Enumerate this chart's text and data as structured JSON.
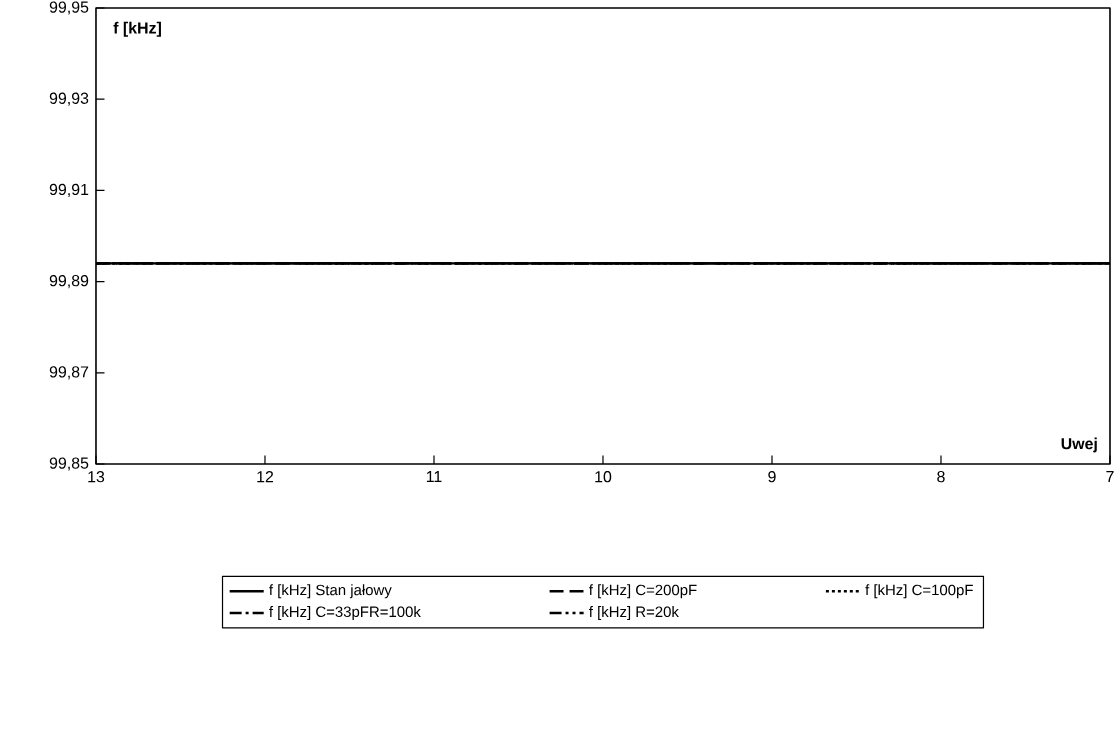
{
  "chart_data": {
    "type": "line",
    "xlabel": "Uwej",
    "ylabel": "f [kHz]",
    "xlim": [
      13,
      7
    ],
    "xticks": [
      13,
      12,
      11,
      10,
      9,
      8,
      7
    ],
    "ylim": [
      99.85,
      99.95
    ],
    "yticks": [
      {
        "value": 99.85,
        "label": "99,85"
      },
      {
        "value": 99.87,
        "label": "99,87"
      },
      {
        "value": 99.89,
        "label": "99,89"
      },
      {
        "value": 99.91,
        "label": "99,91"
      },
      {
        "value": 99.93,
        "label": "99,93"
      },
      {
        "value": 99.95,
        "label": "99,95"
      }
    ],
    "x": [
      13,
      7
    ],
    "grid": false,
    "legend": "bottom",
    "marker": "none",
    "series": [
      {
        "name": "f [kHz] Stan jałowy",
        "color": "#000000",
        "line_style": "solid",
        "values": [
          99.894,
          99.894
        ]
      },
      {
        "name": "f [kHz] C=200pF",
        "color": "#000000",
        "line_style": "dashed",
        "values": [
          99.894,
          99.894
        ]
      },
      {
        "name": "f [kHz] C=100pF",
        "color": "#000000",
        "line_style": "dotted",
        "values": [
          99.894,
          99.894
        ]
      },
      {
        "name": "f [kHz] C=33pFR=100k",
        "color": "#000000",
        "line_style": "dashdot",
        "values": [
          99.894,
          99.894
        ]
      },
      {
        "name": "f [kHz] R=20k",
        "color": "#000000",
        "line_style": "dashdotdot",
        "values": [
          99.894,
          99.894
        ]
      }
    ]
  }
}
